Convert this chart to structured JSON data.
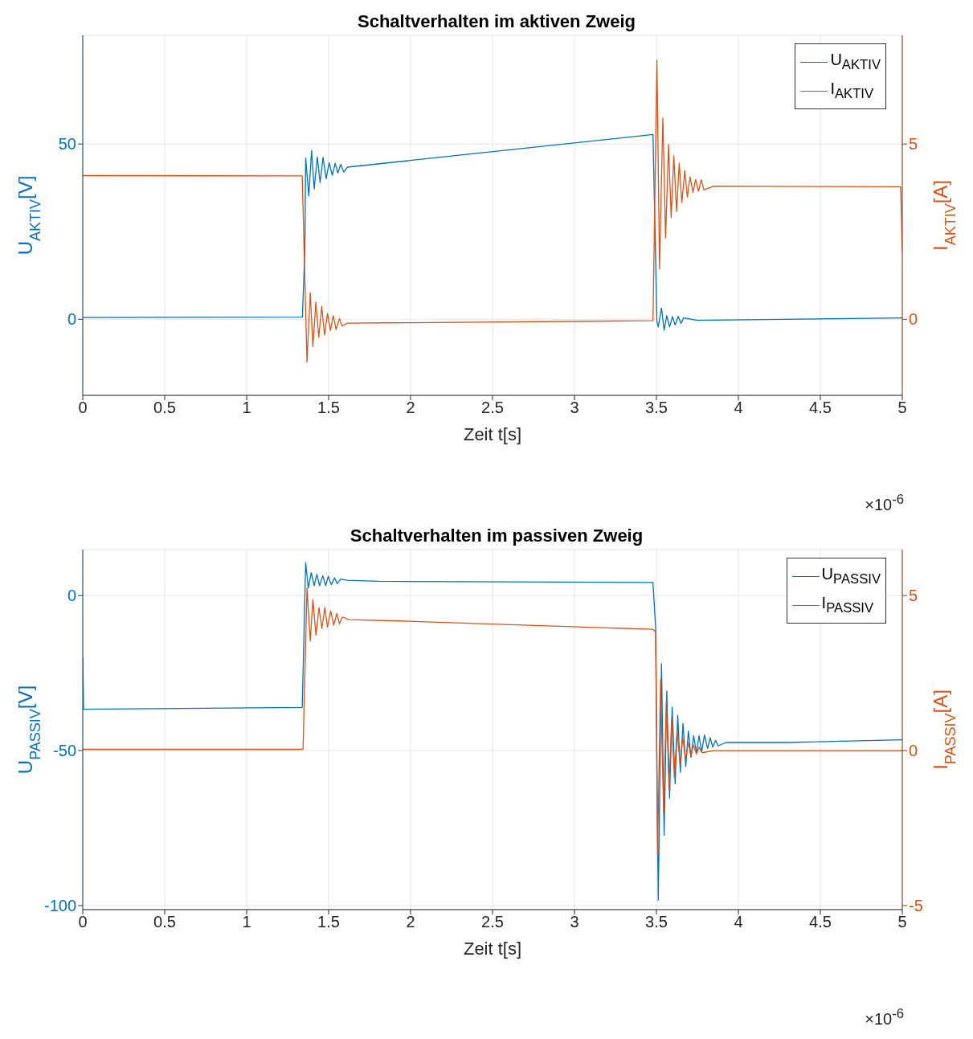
{
  "chart_data": [
    {
      "type": "line",
      "title": "Schaltverhalten im aktiven Zweig",
      "xlabel": "Zeit t[s]",
      "ylabel": "U$_{AKTIV}$[V]",
      "y2label": "I$_{AKTIV}$[A]",
      "annotations": [
        "×10$^{-6}$"
      ],
      "xlim": [
        0,
        5
      ],
      "xticks": [
        0,
        0.5,
        1,
        1.5,
        2,
        2.5,
        3,
        3.5,
        4,
        4.5,
        5
      ],
      "ylim": [
        -21.7,
        81
      ],
      "yticks": [
        0,
        50
      ],
      "y2lim": [
        -2.17,
        8.1
      ],
      "y2ticks": [
        0,
        5
      ],
      "grid": true,
      "legend": "top right",
      "line_style": "solid",
      "series": [
        {
          "name": "U$_{AKTIV}$",
          "color": "#0072bd",
          "x": [
            0,
            1.34,
            1.355,
            1.36,
            1.379,
            1.396,
            1.412,
            1.431,
            1.448,
            1.466,
            1.485,
            1.503,
            1.522,
            1.54,
            1.556,
            1.574,
            1.592,
            1.615,
            3.479,
            3.503,
            3.511,
            3.531,
            3.547,
            3.563,
            3.58,
            3.598,
            3.614,
            3.633,
            3.65,
            3.666,
            3.75,
            5
          ],
          "values": [
            0.5,
            0.6,
            20,
            46,
            35.2,
            48.1,
            37.2,
            46.3,
            39,
            46.2,
            40.1,
            44.7,
            41.1,
            44.5,
            41.7,
            44.2,
            42,
            43.4,
            52.7,
            -0.6,
            -2.2,
            3.2,
            -3.1,
            1,
            -2.2,
            0.8,
            -1.6,
            0.8,
            -1.2,
            0.4,
            -0.3,
            0.4
          ]
        },
        {
          "name": "I$_{AKTIV}$",
          "color": "#d95319",
          "axis": "y2",
          "x": [
            0,
            1.339,
            1.368,
            1.388,
            1.404,
            1.422,
            1.44,
            1.458,
            1.475,
            1.493,
            1.511,
            1.528,
            1.546,
            1.566,
            1.582,
            1.615,
            3.479,
            3.503,
            3.519,
            3.539,
            3.556,
            3.574,
            3.59,
            3.606,
            3.623,
            3.639,
            3.655,
            3.673,
            3.689,
            3.705,
            3.723,
            3.739,
            3.757,
            3.773,
            3.79,
            3.85,
            4.99,
            5
          ],
          "values": [
            4.1,
            4.09,
            -1.22,
            0.76,
            -0.78,
            0.49,
            -0.51,
            0.37,
            -0.45,
            0.17,
            -0.32,
            0.1,
            -0.29,
            0.02,
            -0.19,
            -0.11,
            -0.04,
            7.4,
            1.44,
            5.74,
            2.32,
            4.99,
            2.9,
            4.66,
            3.07,
            4.45,
            3.33,
            4.24,
            3.49,
            4.06,
            3.62,
            3.99,
            3.65,
            3.98,
            3.69,
            3.8,
            3.78,
            1.93
          ]
        }
      ]
    },
    {
      "type": "line",
      "title": "Schaltverhalten im passiven Zweig",
      "xlabel": "Zeit t[s]",
      "ylabel": "U$_{PASSIV}$[V]",
      "y2label": "I$_{PASSIV}$[A]",
      "annotations": [
        "×10$^{-6}$"
      ],
      "xlim": [
        0,
        5
      ],
      "xticks": [
        0,
        0.5,
        1,
        1.5,
        2,
        2.5,
        3,
        3.5,
        4,
        4.5,
        5
      ],
      "ylim": [
        -101.3,
        14.8
      ],
      "yticks": [
        -100,
        -50,
        0
      ],
      "y2lim": [
        -5.13,
        6.48
      ],
      "y2ticks": [
        -5,
        0,
        5
      ],
      "grid": true,
      "legend": "top right",
      "line_style": "solid",
      "series": [
        {
          "name": "U$_{PASSIV}$",
          "color": "#0072bd",
          "x": [
            0,
            0.005,
            1.339,
            1.36,
            1.376,
            1.394,
            1.412,
            1.428,
            1.445,
            1.464,
            1.482,
            1.498,
            1.516,
            1.536,
            1.553,
            1.574,
            1.615,
            1.8,
            3.479,
            3.495,
            3.511,
            3.531,
            3.547,
            3.563,
            3.58,
            3.596,
            3.614,
            3.63,
            3.646,
            3.662,
            3.679,
            3.695,
            3.711,
            3.727,
            3.744,
            3.76,
            3.776,
            3.793,
            3.812,
            3.828,
            3.844,
            3.861,
            3.877,
            3.925,
            4.3,
            5
          ],
          "values": [
            -20,
            -36.7,
            -36.1,
            10.6,
            2.4,
            7.4,
            3.2,
            6.8,
            3.2,
            6.4,
            3.2,
            6.2,
            3.5,
            5.7,
            3.8,
            5.3,
            4.9,
            4.6,
            4.2,
            -10.2,
            -98.3,
            -22,
            -77.3,
            -30.8,
            -65.5,
            -36,
            -60.7,
            -38.6,
            -57,
            -41.2,
            -55.2,
            -43.7,
            -52.2,
            -45.2,
            -50.7,
            -45.2,
            -50.4,
            -45,
            -49.3,
            -45.9,
            -48.9,
            -46.7,
            -48.5,
            -47.4,
            -47.4,
            -46.5
          ]
        },
        {
          "name": "I$_{PASSIV}$",
          "color": "#d95319",
          "axis": "y2",
          "x": [
            0,
            1.344,
            1.368,
            1.388,
            1.404,
            1.423,
            1.441,
            1.459,
            1.477,
            1.493,
            1.513,
            1.531,
            1.55,
            1.566,
            1.584,
            1.623,
            1.93,
            3.479,
            3.495,
            3.507,
            3.525,
            3.544,
            3.56,
            3.577,
            3.593,
            3.609,
            3.626,
            3.644,
            3.66,
            3.678,
            3.694,
            3.71,
            3.726,
            3.744,
            3.76,
            3.779,
            3.85,
            5
          ],
          "values": [
            0.04,
            0.04,
            5.24,
            3.54,
            4.87,
            3.72,
            4.61,
            3.94,
            4.61,
            3.98,
            4.51,
            4.04,
            4.42,
            4.09,
            4.31,
            4.22,
            4.18,
            3.91,
            3.83,
            -3.36,
            2.29,
            -2.03,
            1.59,
            -1.22,
            1.03,
            -0.85,
            0.66,
            -0.44,
            0.44,
            -0.29,
            0.26,
            -0.18,
            0.18,
            -0.11,
            0.11,
            -0.07,
            0,
            0
          ]
        }
      ]
    }
  ]
}
